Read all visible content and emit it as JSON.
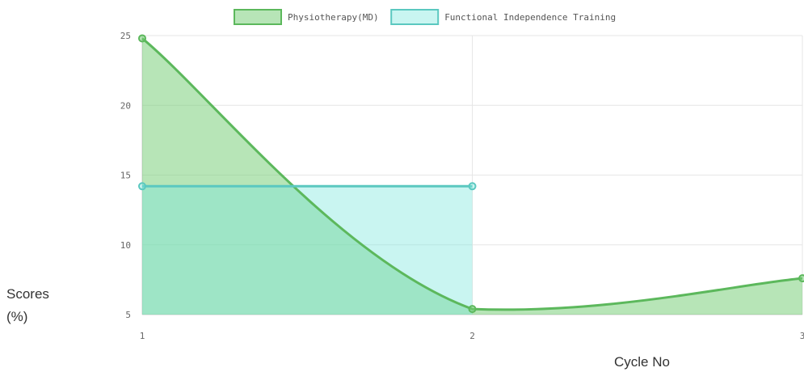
{
  "chart_data": {
    "type": "area",
    "xlabel": "Cycle No",
    "ylabel": "Scores (%)",
    "x": [
      1,
      2,
      3
    ],
    "ylim": [
      5,
      25
    ],
    "yticks": [
      5,
      10,
      15,
      20,
      25
    ],
    "grid": true,
    "legend_position": "top-center",
    "series": [
      {
        "name": "Physiotherapy(MD)",
        "x": [
          1,
          2,
          3
        ],
        "values": [
          24.8,
          5.4,
          7.6
        ],
        "line_color": "#5cb85c",
        "fill_color": "rgba(112, 204, 112, 0.5)"
      },
      {
        "name": "Functional Independence Training",
        "x": [
          1,
          2
        ],
        "values": [
          14.2,
          14.2
        ],
        "line_color": "#5bc8c0",
        "fill_color": "rgba(120, 230, 220, 0.4)"
      }
    ]
  }
}
